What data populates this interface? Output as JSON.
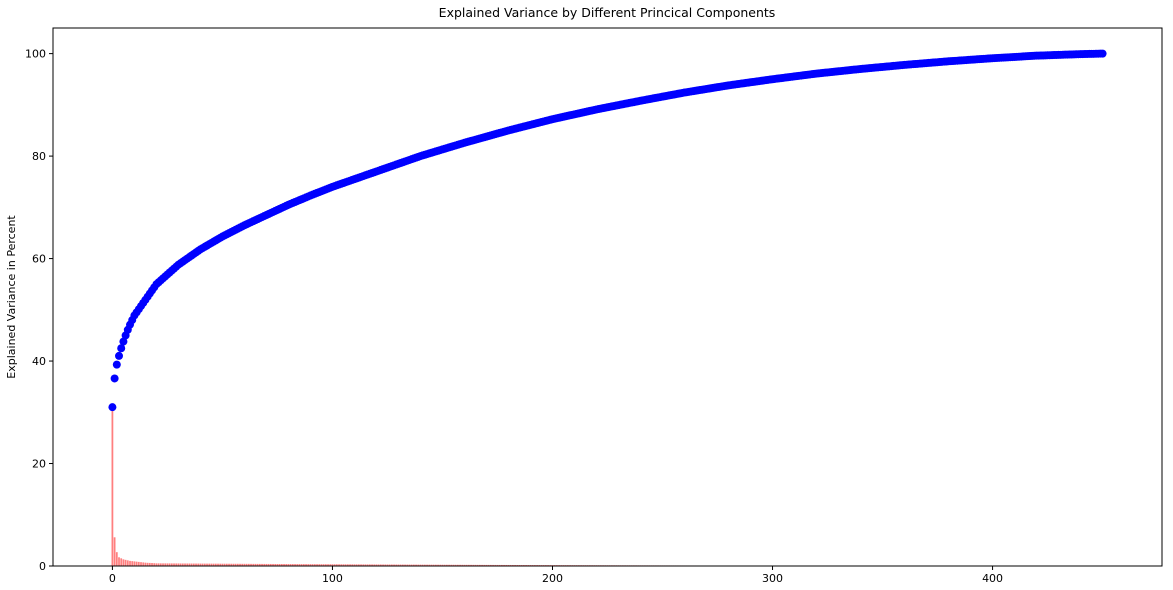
{
  "chart_data": {
    "type": "bar",
    "title": "Explained Variance by Different Princical Components",
    "xlabel": "",
    "ylabel": "Explained Variance in Percent",
    "xlim": [
      -27,
      477
    ],
    "ylim": [
      0,
      105
    ],
    "xticks": [
      0,
      100,
      200,
      300,
      400
    ],
    "yticks": [
      0,
      20,
      40,
      60,
      80,
      100
    ],
    "grid": false,
    "legend": "none",
    "n_components": 451,
    "series": [
      {
        "kind": "bar",
        "color": "#ff7f7f",
        "values_first": [
          31.0,
          5.6,
          2.7,
          1.7,
          1.5,
          1.3,
          1.2,
          1.1,
          1.0,
          0.95,
          0.9,
          0.85,
          0.8,
          0.75,
          0.7,
          0.65,
          0.62,
          0.6,
          0.58,
          0.55
        ],
        "tail_rule": "remaining components are near zero (≈0.5 decreasing to ≈0.02)"
      },
      {
        "kind": "scatter",
        "color": "#0000ff",
        "cumulative_anchor_points": [
          [
            0,
            31.0
          ],
          [
            1,
            36.6
          ],
          [
            2,
            39.3
          ],
          [
            3,
            41.0
          ],
          [
            4,
            42.5
          ],
          [
            5,
            43.8
          ],
          [
            6,
            45.0
          ],
          [
            7,
            46.1
          ],
          [
            8,
            47.1
          ],
          [
            9,
            48.0
          ],
          [
            10,
            48.9
          ],
          [
            20,
            55.0
          ],
          [
            30,
            58.8
          ],
          [
            40,
            61.8
          ],
          [
            50,
            64.3
          ],
          [
            60,
            66.5
          ],
          [
            70,
            68.5
          ],
          [
            80,
            70.5
          ],
          [
            90,
            72.3
          ],
          [
            100,
            74.0
          ],
          [
            120,
            77.0
          ],
          [
            140,
            80.0
          ],
          [
            160,
            82.6
          ],
          [
            180,
            85.0
          ],
          [
            200,
            87.2
          ],
          [
            220,
            89.1
          ],
          [
            240,
            90.8
          ],
          [
            260,
            92.4
          ],
          [
            280,
            93.8
          ],
          [
            300,
            95.0
          ],
          [
            320,
            96.1
          ],
          [
            340,
            97.0
          ],
          [
            360,
            97.8
          ],
          [
            380,
            98.5
          ],
          [
            400,
            99.1
          ],
          [
            420,
            99.6
          ],
          [
            440,
            99.9
          ],
          [
            450,
            100.0
          ]
        ]
      }
    ]
  }
}
